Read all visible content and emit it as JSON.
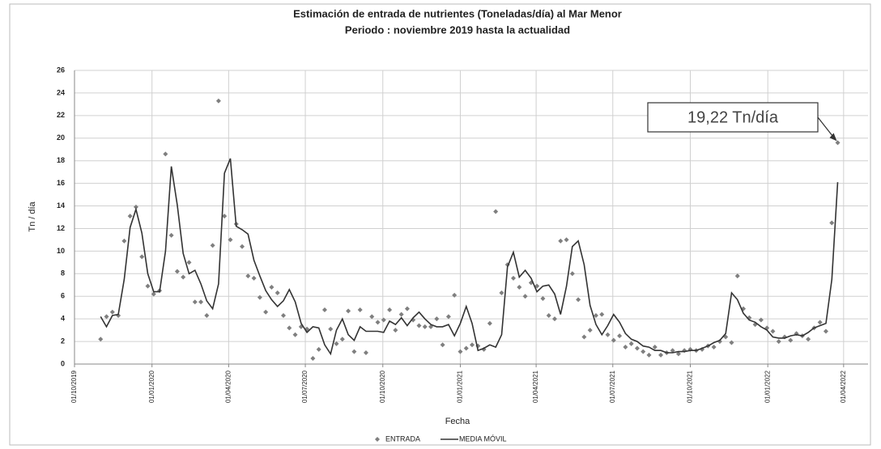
{
  "chart_data": {
    "type": "line",
    "title": "Estimación de entrada de nutrientes (Toneladas/día) al  Mar Menor",
    "subtitle": "Periodo : noviembre 2019 hasta la actualidad",
    "y_label": "Tn / día",
    "x_label": "Fecha",
    "annotation": "19,22 Tn/día",
    "grid": true,
    "legend": "bottom",
    "xlim": [
      "2019-10-01",
      "2022-04-30"
    ],
    "xticks": [
      {
        "value": "2019-10-01",
        "label": "01/10/2019"
      },
      {
        "value": "2020-01-01",
        "label": "01/01/2020"
      },
      {
        "value": "2020-04-01",
        "label": "01/04/2020"
      },
      {
        "value": "2020-07-01",
        "label": "01/07/2020"
      },
      {
        "value": "2020-10-01",
        "label": "01/10/2020"
      },
      {
        "value": "2021-01-01",
        "label": "01/01/2021"
      },
      {
        "value": "2021-04-01",
        "label": "01/04/2021"
      },
      {
        "value": "2021-07-01",
        "label": "01/07/2021"
      },
      {
        "value": "2021-10-01",
        "label": "01/10/2021"
      },
      {
        "value": "2022-01-01",
        "label": "01/01/2022"
      },
      {
        "value": "2022-04-01",
        "label": "01/04/2022"
      }
    ],
    "ylim": [
      0,
      26
    ],
    "yticks": [
      0,
      2,
      4,
      6,
      8,
      10,
      12,
      14,
      16,
      18,
      20,
      22,
      24,
      26
    ],
    "x": [
      "2019-11-01",
      "2019-11-08",
      "2019-11-15",
      "2019-11-22",
      "2019-11-29",
      "2019-12-06",
      "2019-12-13",
      "2019-12-20",
      "2019-12-27",
      "2020-01-03",
      "2020-01-10",
      "2020-01-17",
      "2020-01-24",
      "2020-01-31",
      "2020-02-07",
      "2020-02-14",
      "2020-02-21",
      "2020-02-28",
      "2020-03-06",
      "2020-03-13",
      "2020-03-20",
      "2020-03-27",
      "2020-04-03",
      "2020-04-10",
      "2020-04-17",
      "2020-04-24",
      "2020-05-01",
      "2020-05-08",
      "2020-05-15",
      "2020-05-22",
      "2020-05-29",
      "2020-06-05",
      "2020-06-12",
      "2020-06-19",
      "2020-06-26",
      "2020-07-03",
      "2020-07-10",
      "2020-07-17",
      "2020-07-24",
      "2020-07-31",
      "2020-08-07",
      "2020-08-14",
      "2020-08-21",
      "2020-08-28",
      "2020-09-04",
      "2020-09-11",
      "2020-09-18",
      "2020-09-25",
      "2020-10-02",
      "2020-10-09",
      "2020-10-16",
      "2020-10-23",
      "2020-10-30",
      "2020-11-06",
      "2020-11-13",
      "2020-11-20",
      "2020-11-27",
      "2020-12-04",
      "2020-12-11",
      "2020-12-18",
      "2020-12-25",
      "2021-01-01",
      "2021-01-08",
      "2021-01-15",
      "2021-01-22",
      "2021-01-29",
      "2021-02-05",
      "2021-02-12",
      "2021-02-19",
      "2021-02-26",
      "2021-03-05",
      "2021-03-12",
      "2021-03-19",
      "2021-03-26",
      "2021-04-02",
      "2021-04-09",
      "2021-04-16",
      "2021-04-23",
      "2021-04-30",
      "2021-05-07",
      "2021-05-14",
      "2021-05-21",
      "2021-05-28",
      "2021-06-04",
      "2021-06-11",
      "2021-06-18",
      "2021-06-25",
      "2021-07-02",
      "2021-07-09",
      "2021-07-16",
      "2021-07-23",
      "2021-07-30",
      "2021-08-06",
      "2021-08-13",
      "2021-08-20",
      "2021-08-27",
      "2021-09-03",
      "2021-09-10",
      "2021-09-17",
      "2021-09-24",
      "2021-10-01",
      "2021-10-08",
      "2021-10-15",
      "2021-10-22",
      "2021-10-29",
      "2021-11-05",
      "2021-11-12",
      "2021-11-19",
      "2021-11-26",
      "2021-12-03",
      "2021-12-10",
      "2021-12-17",
      "2021-12-24",
      "2021-12-31",
      "2022-01-07",
      "2022-01-14",
      "2022-01-21",
      "2022-01-28",
      "2022-02-04",
      "2022-02-11",
      "2022-02-18",
      "2022-02-25",
      "2022-03-04",
      "2022-03-11",
      "2022-03-18",
      "2022-03-25"
    ],
    "series": [
      {
        "name": "ENTRADA",
        "color": "#7f7f7f",
        "mode": "markers",
        "values": [
          2.2,
          4.2,
          4.6,
          4.3,
          10.9,
          13.1,
          13.9,
          9.5,
          6.9,
          6.2,
          6.5,
          18.6,
          11.4,
          8.2,
          7.7,
          9.0,
          5.5,
          5.5,
          4.3,
          10.5,
          23.3,
          13.1,
          11.0,
          12.4,
          10.4,
          7.8,
          7.6,
          5.9,
          4.6,
          6.8,
          6.3,
          4.3,
          3.2,
          2.6,
          3.3,
          3.1,
          0.5,
          1.3,
          4.8,
          3.1,
          1.8,
          2.2,
          4.7,
          1.1,
          4.8,
          1.0,
          4.2,
          3.7,
          3.9,
          4.8,
          3.0,
          4.4,
          4.9,
          3.9,
          3.4,
          3.3,
          3.3,
          4.0,
          1.7,
          4.2,
          6.1,
          1.1,
          1.4,
          1.7,
          1.6,
          1.3,
          3.6,
          13.5,
          6.3,
          8.8,
          7.6,
          6.8,
          6.0,
          7.2,
          6.9,
          5.8,
          4.3,
          4.0,
          10.9,
          11.0,
          8.0,
          5.7,
          2.4,
          3.0,
          4.3,
          4.4,
          2.6,
          2.1,
          2.5,
          1.5,
          1.8,
          1.4,
          1.1,
          0.8,
          1.5,
          0.8,
          1.0,
          1.2,
          0.9,
          1.2,
          1.3,
          1.2,
          1.3,
          1.6,
          1.5,
          2.0,
          2.4,
          1.9,
          7.8,
          4.9,
          4.1,
          3.5,
          3.9,
          3.2,
          2.9,
          2.0,
          2.4,
          2.1,
          2.7,
          2.5,
          2.2,
          3.2,
          3.7,
          2.9,
          12.5,
          19.6
        ]
      },
      {
        "name": "MEDIA MÓVIL",
        "color": "#333333",
        "mode": "line",
        "values": [
          4.2,
          3.3,
          4.3,
          4.4,
          7.5,
          12.1,
          13.7,
          11.6,
          8.0,
          6.4,
          6.4,
          10.0,
          17.5,
          14.1,
          9.8,
          8.0,
          8.3,
          7.1,
          5.6,
          4.9,
          7.1,
          16.9,
          18.2,
          12.2,
          11.9,
          11.5,
          9.2,
          7.8,
          6.5,
          5.7,
          5.1,
          5.6,
          6.6,
          5.5,
          3.6,
          2.8,
          3.3,
          3.2,
          1.7,
          0.9,
          3.0,
          4.0,
          2.6,
          2.1,
          3.3,
          2.9,
          2.9,
          2.9,
          2.8,
          3.8,
          3.5,
          4.1,
          3.4,
          4.1,
          4.6,
          4.0,
          3.5,
          3.3,
          3.3,
          3.5,
          2.5,
          3.6,
          5.1,
          3.6,
          1.2,
          1.4,
          1.7,
          1.5,
          2.6,
          8.6,
          9.9,
          7.7,
          8.3,
          7.6,
          6.4,
          6.9,
          7.0,
          6.2,
          4.4,
          6.9,
          10.4,
          10.9,
          8.8,
          5.2,
          3.5,
          2.6,
          3.4,
          4.4,
          3.7,
          2.7,
          2.2,
          2.0,
          1.6,
          1.5,
          1.2,
          1.2,
          1.0,
          1.0,
          1.1,
          1.1,
          1.2,
          1.2,
          1.4,
          1.6,
          1.9,
          2.1,
          2.7,
          6.3,
          5.7,
          4.5,
          3.9,
          3.7,
          3.3,
          3.0,
          2.4,
          2.3,
          2.3,
          2.5,
          2.6,
          2.5,
          2.8,
          3.2,
          3.4,
          3.6,
          7.5,
          16.1
        ]
      }
    ]
  }
}
